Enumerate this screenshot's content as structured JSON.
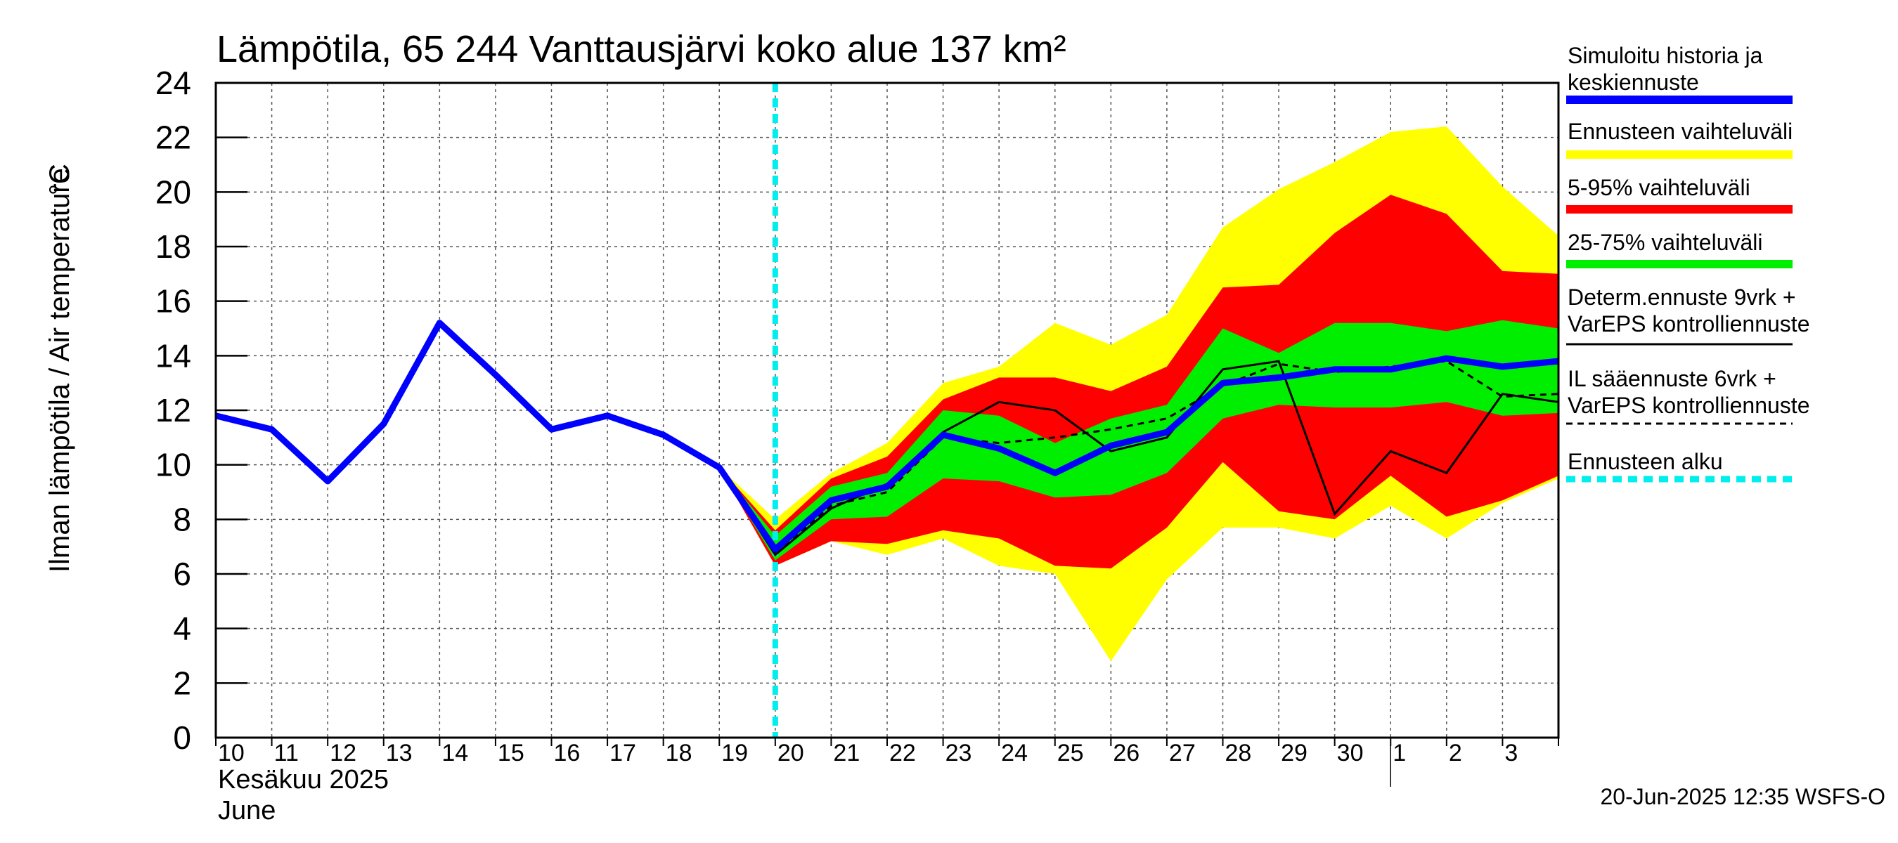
{
  "chart_data": {
    "type": "area",
    "title": "Lämpötila, 65 244 Vanttausjärvi koko alue 137 km²",
    "ylabel": "Ilman lämpötila / Air temperature",
    "yunit": "°C",
    "ylim": [
      0,
      24
    ],
    "yticks": [
      "0",
      "2",
      "4",
      "6",
      "8",
      "10",
      "12",
      "14",
      "16",
      "18",
      "20",
      "22",
      "24"
    ],
    "xlim": [
      0,
      24
    ],
    "xtick_labels": [
      "10",
      "11",
      "12",
      "13",
      "14",
      "15",
      "16",
      "17",
      "18",
      "19",
      "20",
      "21",
      "22",
      "23",
      "24",
      "25",
      "26",
      "27",
      "28",
      "29",
      "30",
      "1",
      "2",
      "3"
    ],
    "month_label_fi": "Kesäkuu   2025",
    "month_label_en": "June",
    "grid": true,
    "forecast_start_x": 10,
    "simulated_history": {
      "x": [
        0,
        1,
        2,
        3,
        4,
        5,
        6,
        7,
        8,
        9,
        10,
        11,
        12,
        13,
        14,
        15,
        16,
        17,
        18,
        19,
        20,
        21,
        22,
        23,
        24
      ],
      "y": [
        11.8,
        11.3,
        9.4,
        11.5,
        15.2,
        13.3,
        11.3,
        11.8,
        11.1,
        9.9,
        6.9,
        8.7,
        9.2,
        11.1,
        10.6,
        9.7,
        10.7,
        11.2,
        13.0,
        13.2,
        13.5,
        13.5,
        13.9,
        13.6,
        13.8
      ]
    },
    "bands": {
      "x": [
        9,
        10,
        11,
        12,
        13,
        14,
        15,
        16,
        17,
        18,
        19,
        20,
        21,
        22,
        23,
        24
      ],
      "range_min": [
        9.9,
        6.3,
        7.2,
        6.7,
        7.3,
        6.3,
        6.0,
        2.8,
        5.8,
        7.7,
        7.7,
        7.3,
        8.5,
        7.3,
        8.6,
        9.5
      ],
      "range_max": [
        9.9,
        8.0,
        9.7,
        10.8,
        13.0,
        13.6,
        15.2,
        14.4,
        15.5,
        18.7,
        20.1,
        21.1,
        22.2,
        22.4,
        20.2,
        18.4
      ],
      "p05": [
        9.9,
        6.3,
        7.2,
        7.1,
        7.6,
        7.3,
        6.3,
        6.2,
        7.7,
        10.1,
        8.3,
        8.0,
        9.6,
        8.1,
        8.7,
        9.6
      ],
      "p95": [
        9.9,
        7.6,
        9.5,
        10.3,
        12.4,
        13.2,
        13.2,
        12.7,
        13.6,
        16.5,
        16.6,
        18.5,
        19.9,
        19.2,
        17.1,
        17.0
      ],
      "p25": [
        9.9,
        6.5,
        8.0,
        8.1,
        9.5,
        9.4,
        8.8,
        8.9,
        9.7,
        11.7,
        12.2,
        12.1,
        12.1,
        12.3,
        11.8,
        11.9
      ],
      "p75": [
        9.9,
        7.4,
        9.2,
        9.7,
        12.0,
        11.8,
        10.8,
        11.7,
        12.2,
        15.0,
        14.1,
        15.2,
        15.2,
        14.9,
        15.3,
        15.0
      ]
    },
    "deterministic": {
      "x": [
        9,
        10,
        11,
        12,
        13,
        14,
        15,
        16,
        17,
        18,
        19,
        20,
        21,
        22,
        23,
        24
      ],
      "y": [
        9.9,
        6.7,
        8.4,
        9.3,
        11.2,
        12.3,
        12.0,
        10.5,
        11.0,
        13.5,
        13.8,
        8.2,
        10.5,
        9.7,
        12.6,
        12.3
      ]
    },
    "il_forecast": {
      "x": [
        9,
        10,
        11,
        12,
        13,
        14,
        15,
        16,
        17,
        18,
        19,
        20,
        21,
        22,
        23,
        24
      ],
      "y": [
        9.9,
        6.8,
        8.5,
        9.0,
        11.0,
        10.8,
        11.0,
        11.3,
        11.7,
        12.9,
        13.7,
        13.4,
        13.6,
        13.8,
        12.5,
        12.6
      ]
    },
    "legend": {
      "items": [
        {
          "label": "Simuloitu historia ja keskiennuste",
          "lines": [
            "Simuloitu historia ja",
            "keskiennuste"
          ],
          "style": "thick",
          "color": "#0000ff"
        },
        {
          "label": "Ennusteen vaihteluväli",
          "lines": [
            "Ennusteen vaihteluväli"
          ],
          "style": "thick",
          "color": "#ffff00"
        },
        {
          "label": "5-95% vaihteluväli",
          "lines": [
            "5-95% vaihteluväli"
          ],
          "style": "thick",
          "color": "#ff0000"
        },
        {
          "label": "25-75% vaihteluväli",
          "lines": [
            "25-75% vaihteluväli"
          ],
          "style": "thick",
          "color": "#00ee00"
        },
        {
          "label": "Determ.ennuste 9vrk + VarEPS kontrolliennuste",
          "lines": [
            "Determ.ennuste 9vrk +",
            "VarEPS kontrolliennuste"
          ],
          "style": "thin",
          "color": "#000000"
        },
        {
          "label": "IL sääennuste 6vrk + VarEPS kontrolliennuste",
          "lines": [
            "IL sääennuste 6vrk  +",
            "  VarEPS kontrolliennuste"
          ],
          "style": "dashed",
          "color": "#000000"
        },
        {
          "label": "Ennusteen alku",
          "lines": [
            "Ennusteen alku"
          ],
          "style": "cyan-dashed",
          "color": "#00eeee"
        }
      ]
    },
    "colors": {
      "range": "#ffff00",
      "p05_95": "#ff0000",
      "p25_75": "#00ee00",
      "median": "#0000ff",
      "forecast_start": "#00eeee"
    }
  },
  "footer": {
    "timestamp": "20-Jun-2025 12:35 WSFS-O"
  }
}
